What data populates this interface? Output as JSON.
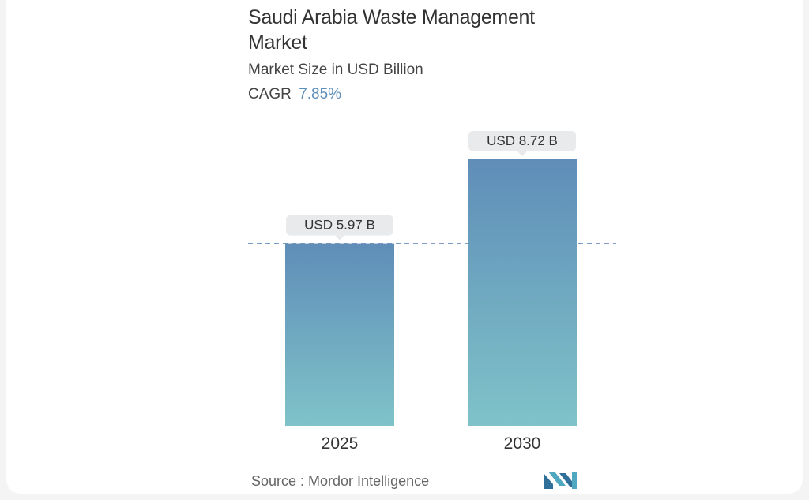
{
  "header": {
    "title": "Saudi Arabia Waste Management Market",
    "subtitle": "Market Size in USD Billion",
    "cagr_label": "CAGR",
    "cagr_value": "7.85%"
  },
  "chart_data": {
    "type": "bar",
    "title": "Saudi Arabia Waste Management Market",
    "categories": [
      "2025",
      "2030"
    ],
    "values": [
      5.97,
      8.72
    ],
    "labels": [
      "USD 5.97 B",
      "USD 8.72 B"
    ],
    "unit": "USD Billion",
    "reference_line": 5.97,
    "colors": {
      "bar_top": "#5f8db8",
      "bar_bottom": "#7fc3c9",
      "label_bg": "#e8eaec",
      "dashed_line": "#7b9cc3"
    },
    "grid": false
  },
  "footer": {
    "source": "Source :  Mordor Intelligence",
    "logo_icon": "mordor-intelligence-logo-icon"
  }
}
